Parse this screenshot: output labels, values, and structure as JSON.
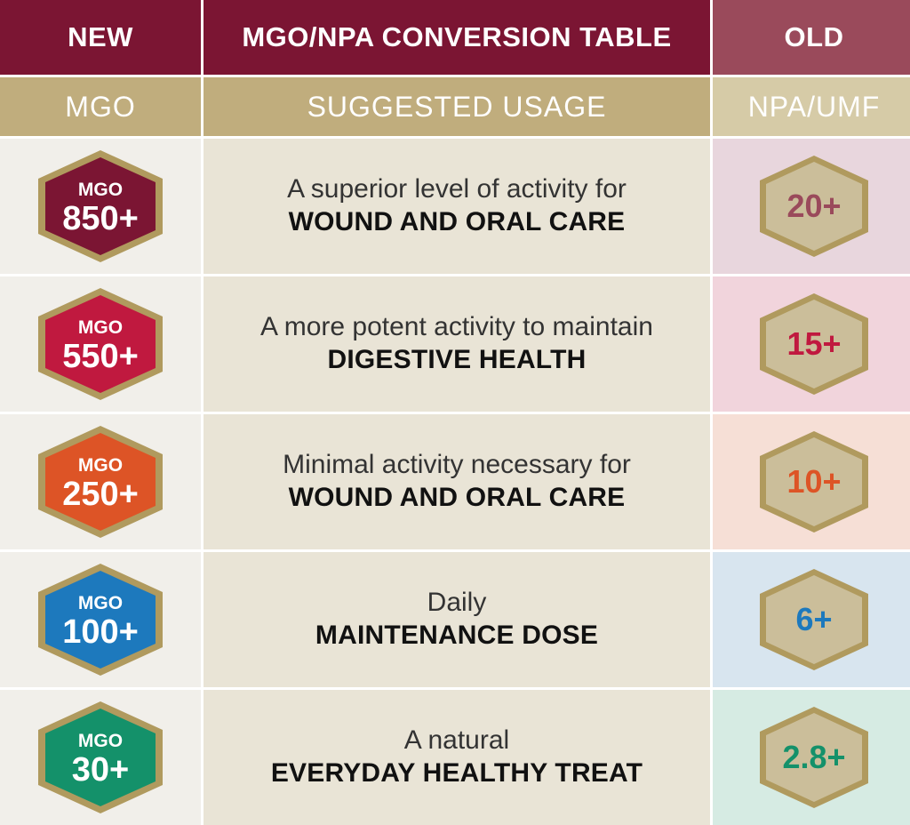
{
  "header": {
    "new_label": "NEW",
    "title": "MGO/NPA CONVERSION TABLE",
    "old_label": "OLD"
  },
  "subheader": {
    "mgo_label": "MGO",
    "usage_label": "SUGGESTED USAGE",
    "npa_label": "NPA/UMF"
  },
  "rows": [
    {
      "badge_label": "MGO",
      "mgo_value": "850+",
      "usage_line1": "A superior level of activity for",
      "usage_line2": "WOUND AND ORAL CARE",
      "npa_value": "20+",
      "badge_color": "#7b1533",
      "npa_color": "#9a4a5b",
      "old_bg": "#e8d6dd",
      "icon": "hexagon-badge-icon"
    },
    {
      "badge_label": "MGO",
      "mgo_value": "550+",
      "usage_line1": "A more potent activity to maintain",
      "usage_line2": "DIGESTIVE HEALTH",
      "npa_value": "15+",
      "badge_color": "#c0193f",
      "npa_color": "#c0193f",
      "old_bg": "#f1d4dc",
      "icon": "hexagon-badge-icon"
    },
    {
      "badge_label": "MGO",
      "mgo_value": "250+",
      "usage_line1": "Minimal activity necessary for",
      "usage_line2": "WOUND AND ORAL CARE",
      "npa_value": "10+",
      "badge_color": "#dd5426",
      "npa_color": "#dd5426",
      "old_bg": "#f6dfd6",
      "icon": "hexagon-badge-icon"
    },
    {
      "badge_label": "MGO",
      "mgo_value": "100+",
      "usage_line1": "Daily",
      "usage_line2": "MAINTENANCE DOSE",
      "npa_value": "6+",
      "badge_color": "#1d79bd",
      "npa_color": "#1d79bd",
      "old_bg": "#d8e5ef",
      "icon": "hexagon-badge-icon"
    },
    {
      "badge_label": "MGO",
      "mgo_value": "30+",
      "usage_line1": "A natural",
      "usage_line2": "EVERYDAY HEALTHY TREAT",
      "npa_value": "2.8+",
      "badge_color": "#14916a",
      "npa_color": "#14916a",
      "old_bg": "#d6ebe3",
      "icon": "hexagon-badge-icon"
    }
  ],
  "colors": {
    "header_primary": "#7b1533",
    "header_old": "#9a4a5b",
    "subheader": "#c0ad7d",
    "subheader_old": "#d6cba7",
    "hex_border": "#b09a5e",
    "old_hex_fill": "#cbbe9a"
  }
}
